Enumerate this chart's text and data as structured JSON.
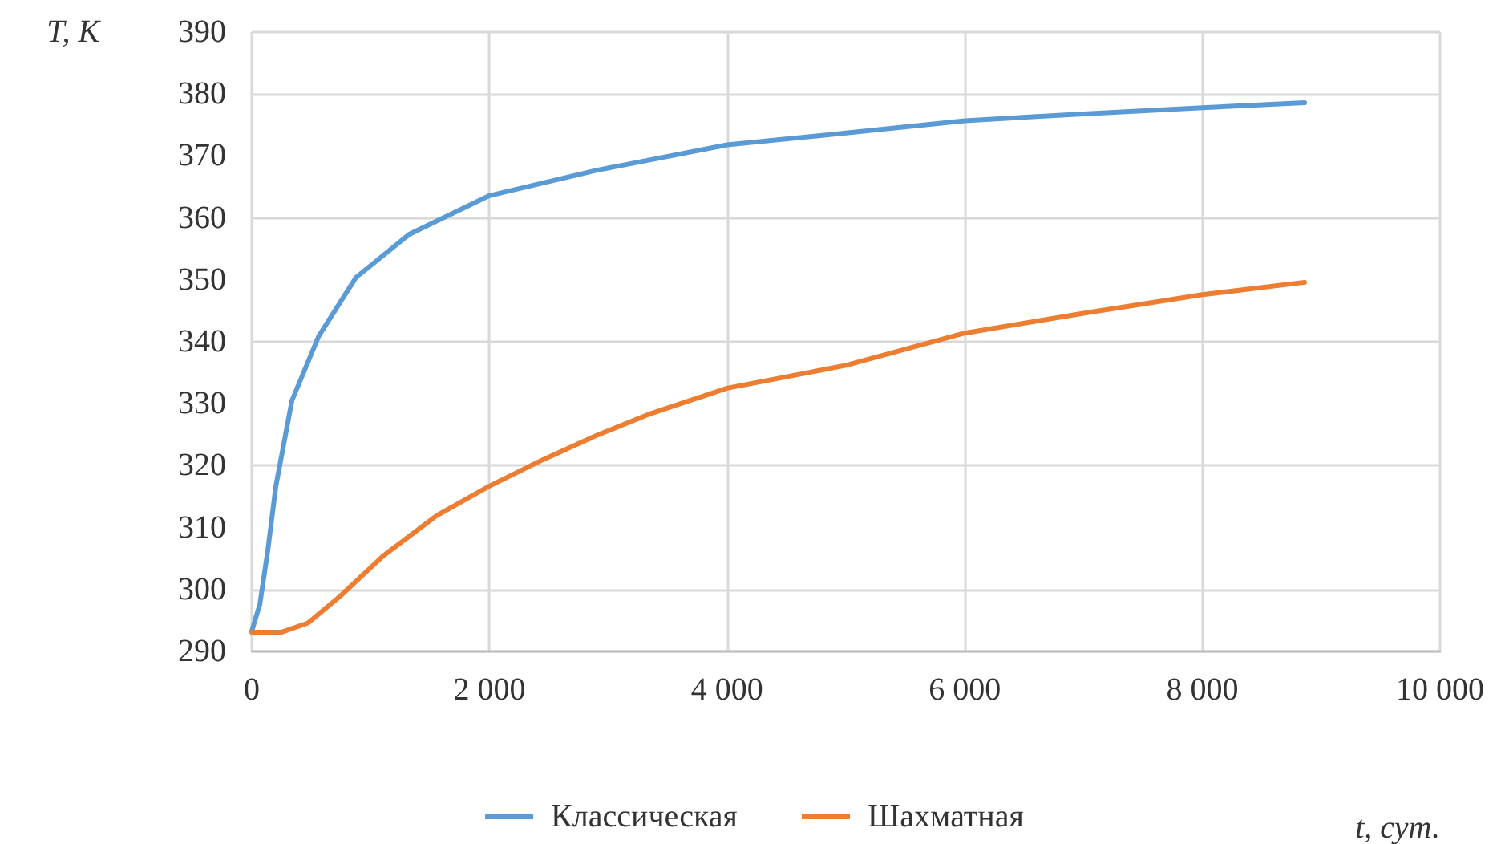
{
  "chart_data": {
    "type": "line",
    "xlabel": "t, сут.",
    "ylabel": "T, К",
    "xlim": [
      0,
      10000
    ],
    "xticks": [
      0,
      {
        "value": 2000,
        "label": "2 000"
      },
      {
        "value": 4000,
        "label": "4 000"
      },
      {
        "value": 6000,
        "label": "6 000"
      },
      {
        "value": 8000,
        "label": "8 000"
      },
      {
        "value": 10000,
        "label": "10 000"
      }
    ],
    "ylim": [
      290,
      390
    ],
    "yticks": [
      290,
      300,
      310,
      320,
      330,
      340,
      350,
      360,
      370,
      380,
      390
    ],
    "grid": true,
    "legend": "bottom",
    "marker": "none",
    "line_style": "solid",
    "series": [
      {
        "name": "Классическая",
        "color": "#5b9bd5",
        "x": [
          0,
          68,
          135,
          203,
          338,
          563,
          878,
          1329,
          2000,
          2905,
          4000,
          5000,
          6000,
          7000,
          8000,
          8860
        ],
        "values": [
          293.3,
          297.6,
          306.3,
          316.7,
          330.5,
          340.9,
          350.4,
          357.4,
          363.6,
          367.7,
          371.8,
          373.7,
          375.7,
          376.8,
          377.8,
          378.6
        ]
      },
      {
        "name": "Шахматная",
        "color": "#ed7d31",
        "x": [
          0,
          248,
          473,
          743,
          1104,
          1554,
          2000,
          2455,
          2905,
          3356,
          4000,
          5000,
          6000,
          7000,
          8000,
          8860
        ],
        "values": [
          293.1,
          293.1,
          294.6,
          298.9,
          305.4,
          311.9,
          316.7,
          321.0,
          324.9,
          328.4,
          332.5,
          336.2,
          341.4,
          344.6,
          347.6,
          349.6
        ]
      }
    ]
  }
}
